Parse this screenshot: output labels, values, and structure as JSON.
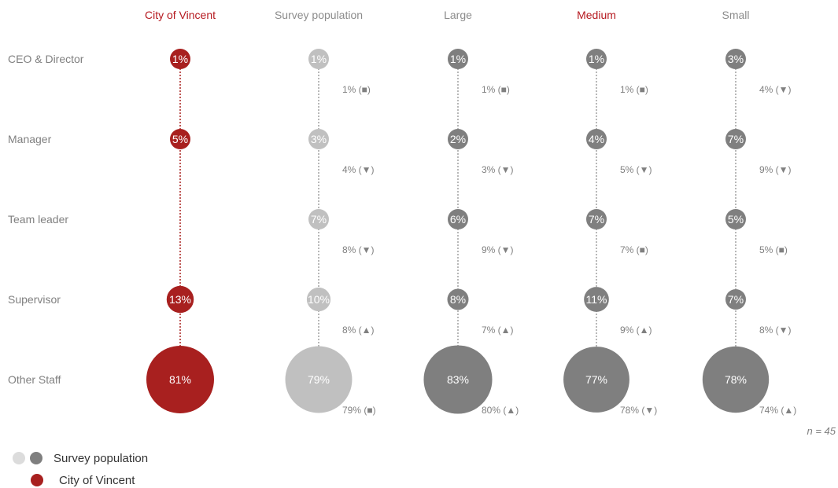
{
  "colors": {
    "vincent": "#a8201f",
    "survey": "#c0c0c0",
    "peer": "#7f7f7f",
    "title_highlight": "#b5191f",
    "title_normal": "#8c8c8c"
  },
  "legend": {
    "survey_label": "Survey population",
    "vincent_label": "City of Vincent"
  },
  "n_note": "n = 45",
  "chart_data": {
    "type": "bubble-column",
    "rows": [
      "CEO & Director",
      "Manager",
      "Team leader",
      "Supervisor",
      "Other Staff"
    ],
    "columns": [
      {
        "name": "City of Vincent",
        "style": "vincent",
        "title_highlight": true,
        "values": [
          1,
          5,
          null,
          13,
          81
        ],
        "labels": [
          "1%",
          "5%",
          "",
          "13%",
          "81%"
        ],
        "previous": null
      },
      {
        "name": "Survey population",
        "style": "survey",
        "title_highlight": false,
        "values": [
          1,
          3,
          7,
          10,
          79
        ],
        "labels": [
          "1%",
          "3%",
          "7%",
          "10%",
          "79%"
        ],
        "previous": [
          "1% (■)",
          "4% (▼)",
          "8% (▼)",
          "8% (▲)",
          "79% (■)"
        ]
      },
      {
        "name": "Large",
        "style": "peer",
        "title_highlight": false,
        "values": [
          1,
          2,
          6,
          8,
          83
        ],
        "labels": [
          "1%",
          "2%",
          "6%",
          "8%",
          "83%"
        ],
        "previous": [
          "1% (■)",
          "3% (▼)",
          "9% (▼)",
          "7% (▲)",
          "80% (▲)"
        ]
      },
      {
        "name": "Medium",
        "style": "peer",
        "title_highlight": true,
        "values": [
          1,
          4,
          7,
          11,
          77
        ],
        "labels": [
          "1%",
          "4%",
          "7%",
          "11%",
          "77%"
        ],
        "previous": [
          "1% (■)",
          "5% (▼)",
          "7% (■)",
          "9% (▲)",
          "78% (▼)"
        ]
      },
      {
        "name": "Small",
        "style": "peer",
        "title_highlight": false,
        "values": [
          3,
          7,
          5,
          7,
          78
        ],
        "labels": [
          "3%",
          "7%",
          "5%",
          "7%",
          "78%"
        ],
        "previous": [
          "4% (▼)",
          "9% (▼)",
          "5% (■)",
          "8% (▼)",
          "74% (▲)"
        ]
      }
    ]
  }
}
